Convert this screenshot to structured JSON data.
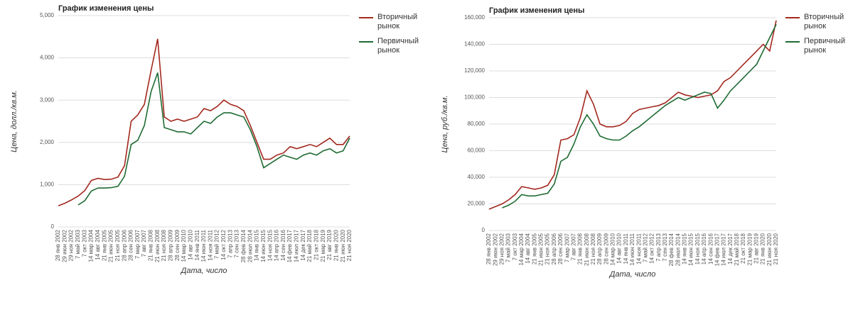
{
  "chart_data": [
    {
      "type": "line",
      "title": "График изменения цены",
      "ylabel": "Цена, долл./кв.м.",
      "xlabel": "Дата, число",
      "categories": [
        "28 янв 2002",
        "29 июн 2002",
        "29 ноя 2002",
        "7 май 2003",
        "7 окт 2003",
        "14 мар 2004",
        "14 авг 2004",
        "21 янв 2005",
        "21 июн 2005",
        "21 ноя 2005",
        "28 апр 2006",
        "28 сен 2006",
        "7 мар 2007",
        "7 авг 2007",
        "21 янв 2008",
        "21 июн 2008",
        "21 ноя 2008",
        "28 апр 2009",
        "28 сен 2009",
        "14 мар 2010",
        "14 авг 2010",
        "14 янв 2011",
        "14 июн 2011",
        "14 ноя 2011",
        "7 май 2012",
        "14 окт 2012",
        "7 апр 2013",
        "7 сен 2013",
        "28 фев 2014",
        "28 июл 2014",
        "14 янв 2015",
        "14 июн 2015",
        "14 ноя 2015",
        "14 апр 2016",
        "14 сен 2016",
        "14 фев 2017",
        "14 июл 2017",
        "14 дек 2017",
        "21 май 2018",
        "21 окт 2018",
        "21 мар 2019",
        "21 авг 2019",
        "21 янв 2020",
        "21 июн 2020",
        "21 ноя 2020"
      ],
      "series": [
        {
          "name": "Вторичный рынок",
          "color": "#a3281e",
          "values": [
            500,
            560,
            640,
            730,
            860,
            1100,
            1150,
            1120,
            1130,
            1180,
            1450,
            2500,
            2650,
            2900,
            3700,
            4450,
            2600,
            2500,
            2550,
            2500,
            2550,
            2600,
            2800,
            2750,
            2850,
            3000,
            2900,
            2850,
            2750,
            2400,
            2000,
            1600,
            1600,
            1700,
            1750,
            1900,
            1850,
            1900,
            1950,
            1900,
            2000,
            2100,
            1950,
            1950,
            2150
          ]
        },
        {
          "name": "Первичный рынок",
          "color": "#1e6b33",
          "values": [
            null,
            null,
            null,
            520,
            620,
            850,
            920,
            920,
            930,
            960,
            1200,
            1950,
            2050,
            2400,
            3200,
            3650,
            2350,
            2300,
            2250,
            2250,
            2200,
            2350,
            2500,
            2450,
            2600,
            2700,
            2700,
            2650,
            2600,
            2300,
            1900,
            1400,
            1500,
            1600,
            1700,
            1650,
            1600,
            1700,
            1750,
            1700,
            1800,
            1850,
            1750,
            1800,
            2100
          ]
        }
      ],
      "ylim": [
        0,
        5000
      ],
      "yticks": [
        0,
        {
          "value": 1000,
          "label": "1,000"
        },
        {
          "value": 2000,
          "label": "2,000"
        },
        {
          "value": 3000,
          "label": "3,000"
        },
        {
          "value": 4000,
          "label": "4,000"
        },
        {
          "value": 5000,
          "label": "5,000"
        }
      ],
      "grid": true
    },
    {
      "type": "line",
      "title": "График изменения цены",
      "ylabel": "Цена, руб./кв.м.",
      "xlabel": "Дата, число",
      "categories": [
        "28 янв 2002",
        "29 июн 2002",
        "29 ноя 2002",
        "7 май 2003",
        "7 окт 2003",
        "14 мар 2004",
        "14 авг 2004",
        "21 янв 2005",
        "21 июн 2005",
        "21 ноя 2005",
        "28 апр 2006",
        "28 сен 2006",
        "7 мар 2007",
        "7 авг 2007",
        "21 янв 2008",
        "21 июн 2008",
        "21 ноя 2008",
        "28 апр 2009",
        "28 сен 2009",
        "14 мар 2010",
        "14 авг 2010",
        "14 янв 2011",
        "14 июн 2011",
        "14 ноя 2011",
        "7 май 2012",
        "14 окт 2012",
        "7 апр 2013",
        "7 сен 2013",
        "28 фев 2014",
        "28 июл 2014",
        "14 янв 2015",
        "14 июн 2015",
        "14 ноя 2015",
        "14 апр 2016",
        "14 сен 2016",
        "14 фев 2017",
        "14 июл 2017",
        "14 дек 2017",
        "21 май 2018",
        "21 окт 2018",
        "21 мар 2019",
        "21 авг 2019",
        "21 янв 2020",
        "21 июн 2020",
        "21 ноя 2020"
      ],
      "series": [
        {
          "name": "Вторичный рынок",
          "color": "#a3281e",
          "values": [
            16000,
            18000,
            20000,
            23000,
            27000,
            33000,
            32000,
            31000,
            32000,
            34000,
            42000,
            68000,
            69000,
            72000,
            85000,
            105000,
            95000,
            80000,
            78000,
            78000,
            79000,
            82000,
            88000,
            91000,
            92000,
            93000,
            94000,
            96000,
            100000,
            104000,
            102000,
            101000,
            100000,
            101000,
            102000,
            105000,
            112000,
            115000,
            120000,
            125000,
            130000,
            135000,
            140000,
            135000,
            158000
          ]
        },
        {
          "name": "Первичный рынок",
          "color": "#1e6b33",
          "values": [
            null,
            null,
            17000,
            19000,
            22000,
            27000,
            26000,
            26000,
            27000,
            28000,
            35000,
            52000,
            55000,
            65000,
            78000,
            87000,
            80000,
            71000,
            69000,
            68000,
            68000,
            71000,
            75000,
            78000,
            82000,
            86000,
            90000,
            94000,
            97000,
            100000,
            98000,
            100000,
            102000,
            104000,
            103000,
            92000,
            98000,
            105000,
            110000,
            115000,
            120000,
            125000,
            135000,
            145000,
            155000
          ]
        }
      ],
      "ylim": [
        0,
        160000
      ],
      "yticks": [
        0,
        {
          "value": 20000,
          "label": "20,000"
        },
        {
          "value": 40000,
          "label": "40,000"
        },
        {
          "value": 60000,
          "label": "60,000"
        },
        {
          "value": 80000,
          "label": "80,000"
        },
        {
          "value": 100000,
          "label": "100,000"
        },
        {
          "value": 120000,
          "label": "120,000"
        },
        {
          "value": 140000,
          "label": "140,000"
        },
        {
          "value": 160000,
          "label": "160,000"
        }
      ],
      "grid": true
    }
  ]
}
